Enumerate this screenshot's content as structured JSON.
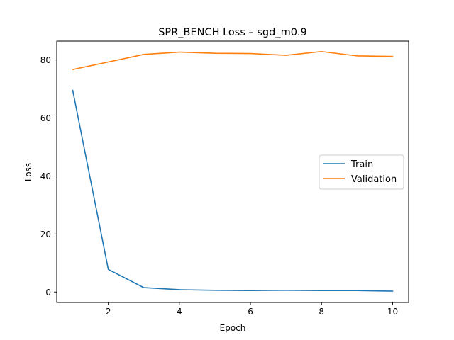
{
  "chart_data": {
    "type": "line",
    "title": "SPR_BENCH Loss – sgd_m0.9",
    "xlabel": "Epoch",
    "ylabel": "Loss",
    "x": [
      1,
      2,
      3,
      4,
      5,
      6,
      7,
      8,
      9,
      10
    ],
    "xlim": [
      0.55,
      10.45
    ],
    "ylim": [
      -3.6,
      86.5
    ],
    "xticks": [
      2,
      4,
      6,
      8,
      10
    ],
    "yticks": [
      0,
      20,
      40,
      60,
      80
    ],
    "grid": false,
    "legend_position": "center-right",
    "series": [
      {
        "name": "Train",
        "color": "#1f77b4",
        "values": [
          69.5,
          7.8,
          1.5,
          0.8,
          0.6,
          0.5,
          0.6,
          0.5,
          0.5,
          0.3
        ]
      },
      {
        "name": "Validation",
        "color": "#ff7f0e",
        "values": [
          76.7,
          79.3,
          81.9,
          82.7,
          82.3,
          82.2,
          81.6,
          82.9,
          81.4,
          81.2
        ]
      }
    ]
  }
}
